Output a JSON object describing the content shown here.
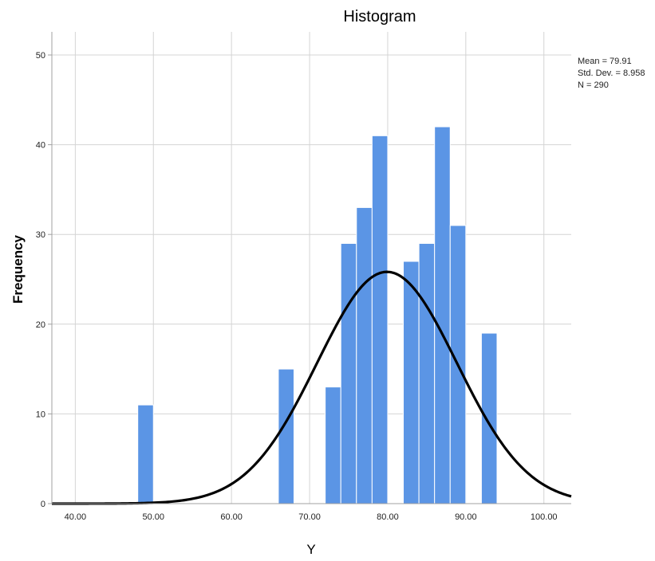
{
  "chart_data": {
    "type": "bar",
    "title": "Histogram",
    "xlabel": "Y",
    "ylabel": "Frequency",
    "xlim": [
      37,
      103.5
    ],
    "ylim": [
      0,
      52
    ],
    "x_ticks": [
      40,
      50,
      60,
      70,
      80,
      90,
      100
    ],
    "x_tick_labels": [
      "40.00",
      "50.00",
      "60.00",
      "70.00",
      "80.00",
      "90.00",
      "100.00"
    ],
    "y_ticks": [
      0,
      10,
      20,
      30,
      40,
      50
    ],
    "y_tick_labels": [
      "0",
      "10",
      "20",
      "30",
      "40",
      "50"
    ],
    "grid": true,
    "bin_width": 2,
    "bins": [
      {
        "x": 49,
        "count": 11
      },
      {
        "x": 67,
        "count": 15
      },
      {
        "x": 73,
        "count": 13
      },
      {
        "x": 75,
        "count": 29
      },
      {
        "x": 77,
        "count": 33
      },
      {
        "x": 79,
        "count": 41
      },
      {
        "x": 83,
        "count": 27
      },
      {
        "x": 85,
        "count": 29
      },
      {
        "x": 87,
        "count": 42
      },
      {
        "x": 89,
        "count": 31
      },
      {
        "x": 93,
        "count": 19
      }
    ],
    "normal_curve": {
      "mean": 79.91,
      "std_dev": 8.958,
      "n": 290
    },
    "stats_text": [
      "Mean = 79.91",
      "Std. Dev. = 8.958",
      "N = 290"
    ],
    "legend_placement": "top-right",
    "colors": {
      "bar": "#5b95e5",
      "bar_edge": "#ffffff",
      "curve": "#000000",
      "grid": "#d4d4d4",
      "frame": "#a0a0a0"
    }
  }
}
